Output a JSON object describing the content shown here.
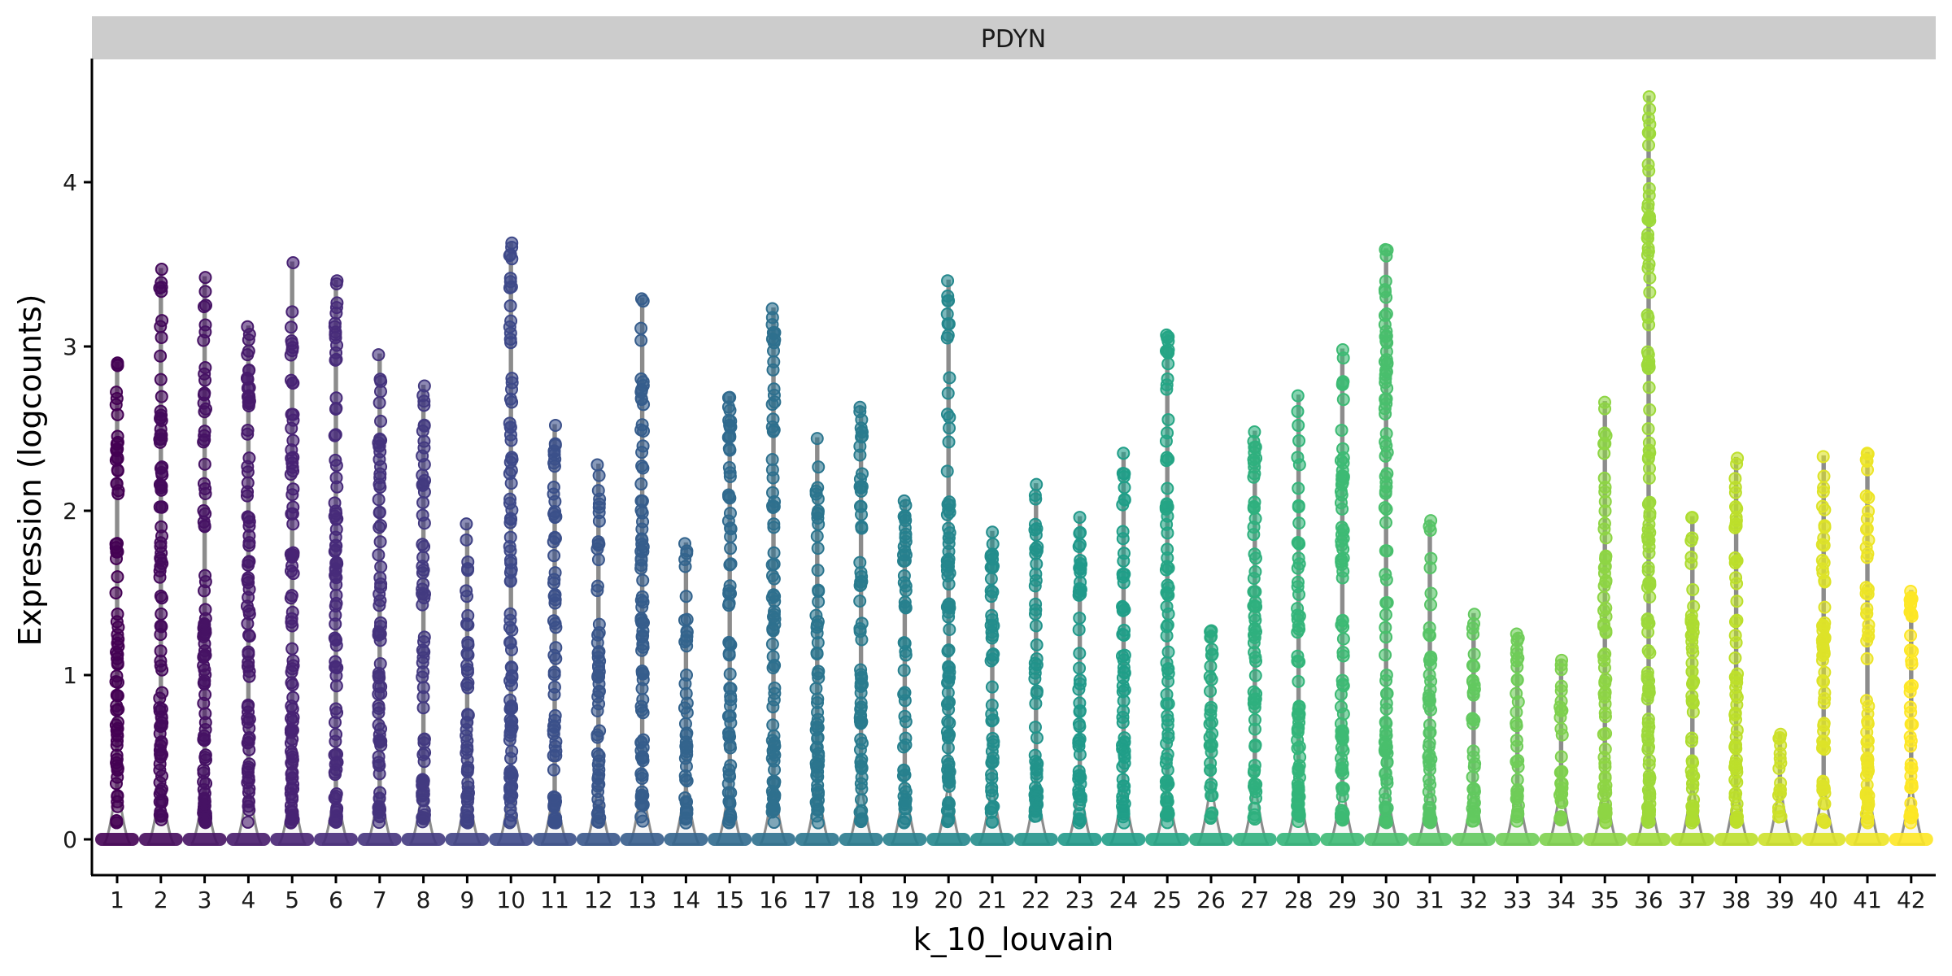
{
  "chart_data": {
    "type": "violin",
    "facet_label": "PDYN",
    "xlabel": "k_10_louvain",
    "ylabel": "Expression (logcounts)",
    "ylim": [
      -0.22,
      4.78
    ],
    "yticks": [
      0,
      1,
      2,
      3,
      4
    ],
    "ytick_labels": [
      "0",
      "1",
      "2",
      "3",
      "4"
    ],
    "grid": false,
    "legend": "none",
    "categories": [
      "1",
      "2",
      "3",
      "4",
      "5",
      "6",
      "7",
      "8",
      "9",
      "10",
      "11",
      "12",
      "13",
      "14",
      "15",
      "16",
      "17",
      "18",
      "19",
      "20",
      "21",
      "22",
      "23",
      "24",
      "25",
      "26",
      "27",
      "28",
      "29",
      "30",
      "31",
      "32",
      "33",
      "34",
      "35",
      "36",
      "37",
      "38",
      "39",
      "40",
      "41",
      "42"
    ],
    "max_expression": [
      2.9,
      3.47,
      3.42,
      3.12,
      3.51,
      3.4,
      2.95,
      2.76,
      1.92,
      3.63,
      2.52,
      2.28,
      3.29,
      1.8,
      2.69,
      3.23,
      2.44,
      2.63,
      2.06,
      3.4,
      1.87,
      2.16,
      1.96,
      2.35,
      3.07,
      1.27,
      2.48,
      2.7,
      2.98,
      3.59,
      1.94,
      1.37,
      1.25,
      1.09,
      2.66,
      4.52,
      1.96,
      2.32,
      0.64,
      2.33,
      2.35,
      1.51
    ],
    "point_color_scale": "viridis",
    "colors": {
      "violin_outline": "#8c8c8c",
      "strip_background": "#cccccc",
      "axis": "#000000"
    }
  }
}
